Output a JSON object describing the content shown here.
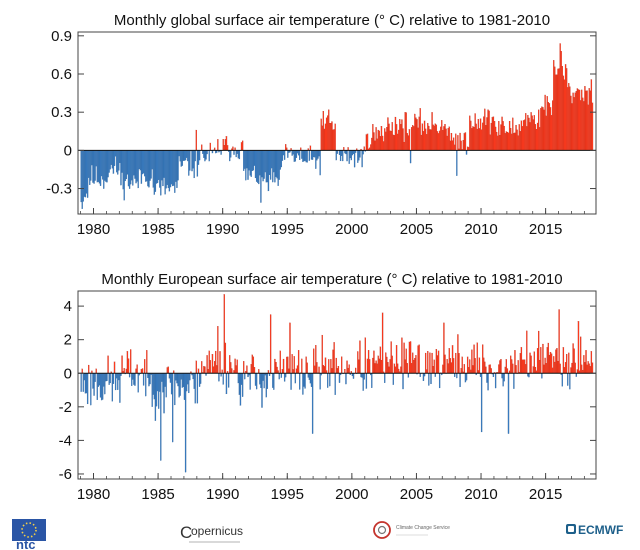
{
  "chart_data": [
    {
      "type": "bar",
      "title": "Monthly  global surface air temperature (° C) relative to 1981-2010",
      "xlabel": "",
      "ylabel": "",
      "xlim": [
        1978.8,
        2018.9
      ],
      "ylim": [
        -0.5,
        0.93
      ],
      "xticks": [
        "1980",
        "1985",
        "1990",
        "1995",
        "2000",
        "2005",
        "2010",
        "2015"
      ],
      "yticks": [
        "0.9",
        "0.6",
        "0.3",
        "0",
        "-0.3"
      ],
      "grid": false,
      "positive_color": "#ff3b1f",
      "negative_color": "#3a7bbf",
      "period_means": [
        {
          "x": [
            1979.0,
            1979.5
          ],
          "y": -0.34
        },
        {
          "x": [
            1979.5,
            1981.0
          ],
          "y": -0.22
        },
        {
          "x": [
            1981.0,
            1982.0
          ],
          "y": -0.15
        },
        {
          "x": [
            1982.0,
            1983.5
          ],
          "y": -0.25
        },
        {
          "x": [
            1983.5,
            1984.5
          ],
          "y": -0.2
        },
        {
          "x": [
            1984.5,
            1986.5
          ],
          "y": -0.3
        },
        {
          "x": [
            1986.5,
            1988.0
          ],
          "y": -0.12
        },
        {
          "x": [
            1988.0,
            1989.5
          ],
          "y": -0.04
        },
        {
          "x": [
            1989.5,
            1991.5
          ],
          "y": 0.02
        },
        {
          "x": [
            1991.5,
            1993.0
          ],
          "y": -0.2
        },
        {
          "x": [
            1993.0,
            1994.5
          ],
          "y": -0.24
        },
        {
          "x": [
            1994.5,
            1996.0
          ],
          "y": -0.05
        },
        {
          "x": [
            1996.0,
            1997.5
          ],
          "y": -0.08
        },
        {
          "x": [
            1997.5,
            1998.7
          ],
          "y": 0.2
        },
        {
          "x": [
            1998.7,
            2001.0
          ],
          "y": -0.05
        },
        {
          "x": [
            2001.0,
            2002.5
          ],
          "y": 0.12
        },
        {
          "x": [
            2002.5,
            2007.5
          ],
          "y": 0.2
        },
        {
          "x": [
            2007.5,
            2009.0
          ],
          "y": 0.08
        },
        {
          "x": [
            2009.0,
            2011.0
          ],
          "y": 0.24
        },
        {
          "x": [
            2011.0,
            2013.0
          ],
          "y": 0.17
        },
        {
          "x": [
            2013.0,
            2014.5
          ],
          "y": 0.25
        },
        {
          "x": [
            2014.5,
            2015.5
          ],
          "y": 0.35
        },
        {
          "x": [
            2015.5,
            2016.6
          ],
          "y": 0.62
        },
        {
          "x": [
            2016.6,
            2018.6
          ],
          "y": 0.46
        }
      ],
      "noise_amplitude": 0.08,
      "noise_seed": 11,
      "spikes": [
        {
          "x": 1979.05,
          "y": -0.46
        },
        {
          "x": 1987.9,
          "y": 0.16
        },
        {
          "x": 1992.9,
          "y": -0.41
        },
        {
          "x": 1998.2,
          "y": 0.32
        },
        {
          "x": 2004.5,
          "y": -0.1
        },
        {
          "x": 2008.1,
          "y": -0.2
        },
        {
          "x": 2016.1,
          "y": 0.84
        },
        {
          "x": 2016.2,
          "y": 0.78
        }
      ]
    },
    {
      "type": "bar",
      "title": "Monthly  European surface air temperature (° C) relative to 1981-2010",
      "xlabel": "",
      "ylabel": "",
      "xlim": [
        1978.8,
        2018.9
      ],
      "ylim": [
        -6.3,
        4.9
      ],
      "xticks": [
        "1980",
        "1985",
        "1990",
        "1995",
        "2000",
        "2005",
        "2010",
        "2015"
      ],
      "yticks": [
        "4",
        "2",
        "0",
        "-2",
        "-4",
        "-6"
      ],
      "grid": false,
      "positive_color": "#ff3b1f",
      "negative_color": "#3a7bbf",
      "period_means": [
        {
          "x": [
            1979.0,
            1982.0
          ],
          "y": -0.6
        },
        {
          "x": [
            1982.0,
            1984.0
          ],
          "y": 0.0
        },
        {
          "x": [
            1984.0,
            1988.0
          ],
          "y": -0.8
        },
        {
          "x": [
            1988.0,
            1991.0
          ],
          "y": 0.5
        },
        {
          "x": [
            1991.0,
            1994.0
          ],
          "y": -0.3
        },
        {
          "x": [
            1994.0,
            1997.0
          ],
          "y": 0.0
        },
        {
          "x": [
            1997.0,
            2003.0
          ],
          "y": 0.35
        },
        {
          "x": [
            2003.0,
            2010.0
          ],
          "y": 0.6
        },
        {
          "x": [
            2010.0,
            2012.5
          ],
          "y": 0.2
        },
        {
          "x": [
            2012.5,
            2018.6
          ],
          "y": 0.85
        }
      ],
      "noise_amplitude": 1.2,
      "noise_seed": 23,
      "spikes": [
        {
          "x": 1985.2,
          "y": -5.2
        },
        {
          "x": 1987.05,
          "y": -5.9
        },
        {
          "x": 1986.1,
          "y": -4.1
        },
        {
          "x": 1990.05,
          "y": 4.7
        },
        {
          "x": 1989.6,
          "y": 2.8
        },
        {
          "x": 1993.7,
          "y": 3.5
        },
        {
          "x": 1995.2,
          "y": 3.0
        },
        {
          "x": 1996.9,
          "y": -3.6
        },
        {
          "x": 2002.3,
          "y": 3.6
        },
        {
          "x": 2007.1,
          "y": 3.0
        },
        {
          "x": 2010.0,
          "y": -3.5
        },
        {
          "x": 2012.1,
          "y": -3.6
        },
        {
          "x": 2016.0,
          "y": 3.8
        },
        {
          "x": 2017.5,
          "y": 3.1
        }
      ]
    }
  ],
  "footer": {
    "logos": [
      {
        "icon": "eu-flag-icon",
        "text": "ntc"
      },
      {
        "icon": "copernicus-logo",
        "text": "opernicus",
        "initial": "C"
      },
      {
        "icon": "climate-change-service-logo",
        "text": "Climate Change Service"
      },
      {
        "icon": "ecmwf-logo",
        "text": "ECMWF"
      }
    ]
  },
  "colors": {
    "axis": "#444444",
    "zero_line": "#111111",
    "eu_blue": "#2a55a5",
    "eu_star": "#f2d04a",
    "ecmwf_blue": "#1d5f8a",
    "ccs_red": "#c4342d"
  }
}
